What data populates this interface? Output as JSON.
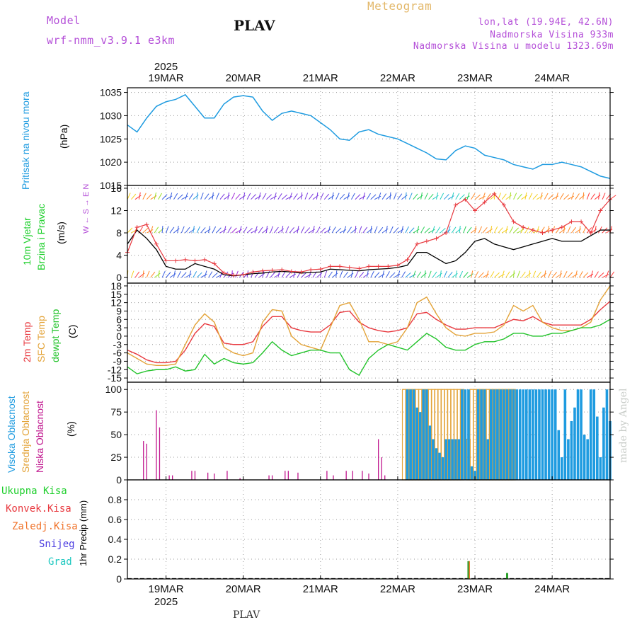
{
  "header": {
    "model_label": "Model",
    "model_name": "wrf-nmm_v3.9.1  e3km",
    "title": "PLAV",
    "product": "Meteogram",
    "coords": "lon,lat (19.94E, 42.6N)",
    "elevation": "Nadmorska Visina 933m",
    "model_elevation": "Nadmorska Visina u modelu 1323.69m"
  },
  "colors": {
    "pressure": "#1e9be0",
    "wind_label": "#1ccf2a",
    "temp2m": "#e8393f",
    "sfc": "#e3a338",
    "dewpt": "#22c32a",
    "high_cloud": "#1e9be0",
    "mid_cloud": "#e3a338",
    "low_cloud": "#c0168e",
    "purple": "#b44fd8"
  },
  "time_axis": {
    "year": "2025",
    "dates": [
      "19MAR",
      "20MAR",
      "21MAR",
      "22MAR",
      "23MAR",
      "24MAR"
    ],
    "start_hour": 0,
    "end_hour": 150
  },
  "footer": {
    "location": "PLAV",
    "credit": "made by Angel"
  },
  "chart_data": [
    {
      "type": "line",
      "panel": "pressure",
      "label": "Pritisak na nivou mora",
      "ylabel": "(hPa)",
      "ylim": [
        1015,
        1036
      ],
      "yticks": [
        1015,
        1020,
        1025,
        1030,
        1035
      ],
      "series": [
        {
          "name": "Mean sea level pressure",
          "x": [
            0,
            3,
            6,
            9,
            12,
            15,
            18,
            21,
            24,
            27,
            30,
            33,
            36,
            39,
            42,
            45,
            48,
            51,
            54,
            57,
            60,
            63,
            66,
            69,
            72,
            75,
            78,
            81,
            84,
            87,
            90,
            93,
            96,
            99,
            102,
            105,
            108,
            111,
            114,
            117,
            120,
            123,
            126,
            129,
            132,
            135,
            138,
            141,
            144,
            147,
            150
          ],
          "y": [
            1028,
            1026.5,
            1029.5,
            1032,
            1033,
            1033.5,
            1034.5,
            1032,
            1029.5,
            1029.5,
            1032.5,
            1034,
            1034.3,
            1034,
            1031,
            1029,
            1030.5,
            1031,
            1030.5,
            1030,
            1028.5,
            1027,
            1025,
            1024.7,
            1026.5,
            1027,
            1026,
            1025.5,
            1025,
            1024,
            1023,
            1022,
            1020.7,
            1020.5,
            1022.5,
            1023.5,
            1023,
            1021.5,
            1021,
            1020.5,
            1019.5,
            1019,
            1018.5,
            1019.5,
            1019.5,
            1020,
            1019.5,
            1019,
            1018,
            1017,
            1016.5
          ]
        }
      ]
    },
    {
      "type": "line",
      "panel": "wind",
      "label_line1": "10m Vjetar",
      "label_line2": "Brzina i Pravac",
      "ylabel": "(m/s)",
      "direction_legend": "W ← S → E  N",
      "ylim": [
        -1,
        16.5
      ],
      "yticks": [
        0,
        4,
        8,
        12,
        16
      ],
      "series": [
        {
          "name": "Wind speed",
          "x": [
            0,
            3,
            6,
            9,
            12,
            15,
            18,
            21,
            24,
            27,
            30,
            33,
            36,
            39,
            42,
            45,
            48,
            51,
            54,
            57,
            60,
            63,
            66,
            69,
            72,
            75,
            78,
            81,
            84,
            87,
            90,
            93,
            96,
            99,
            102,
            105,
            108,
            111,
            114,
            117,
            120,
            123,
            126,
            129,
            132,
            135,
            138,
            141,
            144,
            147,
            150
          ],
          "y": [
            6,
            8.5,
            7,
            5,
            2,
            1.5,
            1.5,
            2.5,
            2,
            1.5,
            0.5,
            0.3,
            0.5,
            0.7,
            0.8,
            1,
            1.1,
            1,
            0.8,
            0.9,
            1,
            1.5,
            1.4,
            1.3,
            1.2,
            1.4,
            1.5,
            1.6,
            1.8,
            2.2,
            4.5,
            4.5,
            3.5,
            2.5,
            3,
            4.5,
            6.5,
            7,
            6,
            5.5,
            5,
            5.5,
            6,
            6.5,
            7,
            6.5,
            6.5,
            6.5,
            7.5,
            8.5,
            8.5
          ]
        },
        {
          "name": "Wind gust",
          "x": [
            0,
            3,
            6,
            9,
            12,
            15,
            18,
            21,
            24,
            27,
            30,
            33,
            36,
            39,
            42,
            45,
            48,
            51,
            54,
            57,
            60,
            63,
            66,
            69,
            72,
            75,
            78,
            81,
            84,
            87,
            90,
            93,
            96,
            99,
            102,
            105,
            108,
            111,
            114,
            117,
            120,
            123,
            126,
            129,
            132,
            135,
            138,
            141,
            144,
            147,
            150
          ],
          "y": [
            4.5,
            9,
            9.5,
            6,
            3,
            3,
            3.2,
            3,
            3.2,
            2.5,
            0.8,
            0.4,
            0.5,
            1,
            1.2,
            1.3,
            1.4,
            1.1,
            1,
            1.4,
            1.5,
            2,
            2,
            1.8,
            1.6,
            2,
            2,
            2,
            2.2,
            3.2,
            6,
            6.5,
            7,
            8,
            13,
            14,
            12,
            13.5,
            15,
            13,
            10,
            9,
            8.5,
            8,
            8.5,
            9,
            10,
            10,
            8,
            12,
            14
          ]
        }
      ],
      "barb_rows": [
        0,
        8,
        14
      ]
    },
    {
      "type": "line",
      "panel": "temperature",
      "label_temp": "2m Temp",
      "label_sfc": "SFC Temp",
      "label_dewpt": "dewpt Temp",
      "ylabel": "(C)",
      "ylim": [
        -16.5,
        19
      ],
      "yticks": [
        -15,
        -12,
        -9,
        -6,
        -3,
        0,
        3,
        6,
        9,
        12,
        15,
        18
      ],
      "series": [
        {
          "name": "2m Temp",
          "x": [
            0,
            3,
            6,
            9,
            12,
            15,
            18,
            21,
            24,
            27,
            30,
            33,
            36,
            39,
            42,
            45,
            48,
            51,
            54,
            57,
            60,
            63,
            66,
            69,
            72,
            75,
            78,
            81,
            84,
            87,
            90,
            93,
            96,
            99,
            102,
            105,
            108,
            111,
            114,
            117,
            120,
            123,
            126,
            129,
            132,
            135,
            138,
            141,
            144,
            147,
            150
          ],
          "y": [
            -5,
            -6.5,
            -8.5,
            -9.5,
            -9.5,
            -9,
            -5,
            1,
            4.5,
            3.5,
            -2.5,
            -3,
            -3,
            -2,
            3.5,
            7,
            7,
            3,
            2,
            1.5,
            1.5,
            4,
            8.5,
            9,
            5,
            3,
            2,
            1.5,
            2,
            3,
            8,
            8.5,
            6,
            4,
            2.5,
            2.5,
            3,
            3,
            3,
            4.5,
            6,
            5.5,
            7,
            5,
            4,
            4,
            4,
            4,
            6,
            9.5,
            12.5
          ]
        },
        {
          "name": "SFC Temp",
          "x": [
            0,
            3,
            6,
            9,
            12,
            15,
            18,
            21,
            24,
            27,
            30,
            33,
            36,
            39,
            42,
            45,
            48,
            51,
            54,
            57,
            60,
            63,
            66,
            69,
            72,
            75,
            78,
            81,
            84,
            87,
            90,
            93,
            96,
            99,
            102,
            105,
            108,
            111,
            114,
            117,
            120,
            123,
            126,
            129,
            132,
            135,
            138,
            141,
            144,
            147,
            150
          ],
          "y": [
            -6,
            -8,
            -10,
            -10.5,
            -10.5,
            -10,
            -3,
            4,
            8,
            5,
            -4,
            -6,
            -7,
            -6,
            5,
            9.5,
            9,
            0,
            -3,
            -4,
            -5,
            3,
            11,
            12,
            6,
            -2,
            -2,
            -3,
            -2,
            3,
            12,
            14,
            8,
            3,
            0.5,
            0,
            1,
            1,
            1.5,
            4,
            11,
            9,
            11,
            5,
            3,
            2,
            2,
            3,
            5,
            13,
            18
          ]
        },
        {
          "name": "dewpt Temp",
          "x": [
            0,
            3,
            6,
            9,
            12,
            15,
            18,
            21,
            24,
            27,
            30,
            33,
            36,
            39,
            42,
            45,
            48,
            51,
            54,
            57,
            60,
            63,
            66,
            69,
            72,
            75,
            78,
            81,
            84,
            87,
            90,
            93,
            96,
            99,
            102,
            105,
            108,
            111,
            114,
            117,
            120,
            123,
            126,
            129,
            132,
            135,
            138,
            141,
            144,
            147,
            150
          ],
          "y": [
            -11,
            -13.5,
            -12.5,
            -12,
            -12,
            -11,
            -12.5,
            -12,
            -6.5,
            -10,
            -8,
            -9.5,
            -10,
            -9.5,
            -6,
            -2,
            -5,
            -7,
            -6,
            -5,
            -5,
            -6,
            -6,
            -12,
            -14,
            -8,
            -5,
            -3,
            -4,
            -5,
            -2,
            1,
            -1,
            -4,
            -5,
            -5,
            -3,
            -2,
            -2,
            -1,
            1,
            1,
            0,
            0,
            1,
            1,
            2,
            3,
            3,
            4,
            6
          ]
        }
      ]
    },
    {
      "type": "bar",
      "panel": "cloud",
      "label_high": "Visoka Oblacnost",
      "label_mid": "Srednja Oblacnost",
      "label_low": "Niska Oblacnost",
      "ylabel": "(%)",
      "ylim": [
        0,
        108
      ],
      "yticks": [
        0,
        25,
        50,
        75,
        100
      ],
      "series": [
        {
          "name": "Visoka Oblacnost",
          "x": [
            87,
            88,
            89,
            90,
            91,
            92,
            93,
            94,
            95,
            96,
            97,
            98,
            99,
            100,
            101,
            102,
            103,
            104,
            105,
            106,
            107,
            108,
            109,
            110,
            111,
            112,
            113,
            114,
            115,
            116,
            117,
            118,
            119,
            120,
            121,
            122,
            123,
            124,
            125,
            126,
            127,
            128,
            129,
            130,
            131,
            132,
            133,
            134,
            135,
            136,
            137,
            138,
            139,
            140,
            141,
            142,
            143,
            144,
            145,
            146,
            147,
            148,
            149,
            150
          ],
          "y": [
            100,
            100,
            100,
            80,
            75,
            100,
            100,
            60,
            45,
            35,
            30,
            25,
            45,
            45,
            45,
            45,
            45,
            100,
            100,
            100,
            15,
            10,
            100,
            100,
            100,
            45,
            100,
            100,
            100,
            100,
            100,
            100,
            100,
            100,
            100,
            100,
            100,
            100,
            100,
            100,
            100,
            100,
            100,
            100,
            100,
            100,
            100,
            55,
            25,
            100,
            45,
            65,
            80,
            100,
            100,
            50,
            45,
            100,
            100,
            70,
            25,
            80,
            100,
            65
          ]
        },
        {
          "name": "Srednja Oblacnost",
          "x": [
            86,
            87,
            88,
            89,
            90,
            91,
            92,
            93,
            94,
            95,
            96,
            97,
            98,
            99,
            100,
            101,
            102,
            103,
            104,
            106,
            107,
            108,
            109,
            110,
            111,
            112,
            113,
            114,
            115,
            116,
            117,
            118,
            119,
            120
          ],
          "y": [
            100,
            100,
            100,
            100,
            100,
            100,
            100,
            100,
            100,
            100,
            100,
            100,
            100,
            100,
            100,
            100,
            100,
            100,
            100,
            45,
            100,
            100,
            100,
            100,
            100,
            100,
            100,
            100,
            100,
            100,
            100,
            100,
            100,
            100
          ]
        },
        {
          "name": "Niska Oblacnost",
          "x": [
            5,
            6,
            9,
            10,
            13,
            14,
            20,
            21,
            25,
            27,
            31,
            35,
            44,
            45,
            49,
            50,
            53,
            62,
            64,
            68,
            70,
            73,
            75,
            78,
            79,
            80
          ],
          "y": [
            43,
            40,
            77,
            58,
            5,
            5,
            10,
            10,
            8,
            7,
            10,
            2,
            5,
            5,
            10,
            10,
            8,
            10,
            5,
            10,
            10,
            10,
            7,
            45,
            25,
            5
          ]
        }
      ]
    },
    {
      "type": "bar",
      "panel": "precip",
      "labels": [
        "Ukupna Kisa",
        "Konvek.Kisa",
        "Zaledj.Kisa",
        "Snijeg",
        "Grad"
      ],
      "label_colors": [
        "#1ccf2a",
        "#e8393f",
        "#f0732a",
        "#4a3be0",
        "#1ec8c0"
      ],
      "ylabel": "1hr Precip (mm)",
      "ylim": [
        0,
        1.0
      ],
      "yticks": [
        0,
        0.2,
        0.4,
        0.6,
        0.8
      ],
      "series": [
        {
          "name": "Ukupna Kisa",
          "x": [
            79,
            106,
            118
          ],
          "y": [
            0.005,
            0.18,
            0.06
          ]
        },
        {
          "name": "Zaledj.Kisa",
          "x": [
            106
          ],
          "y": [
            0.18
          ]
        }
      ]
    }
  ]
}
